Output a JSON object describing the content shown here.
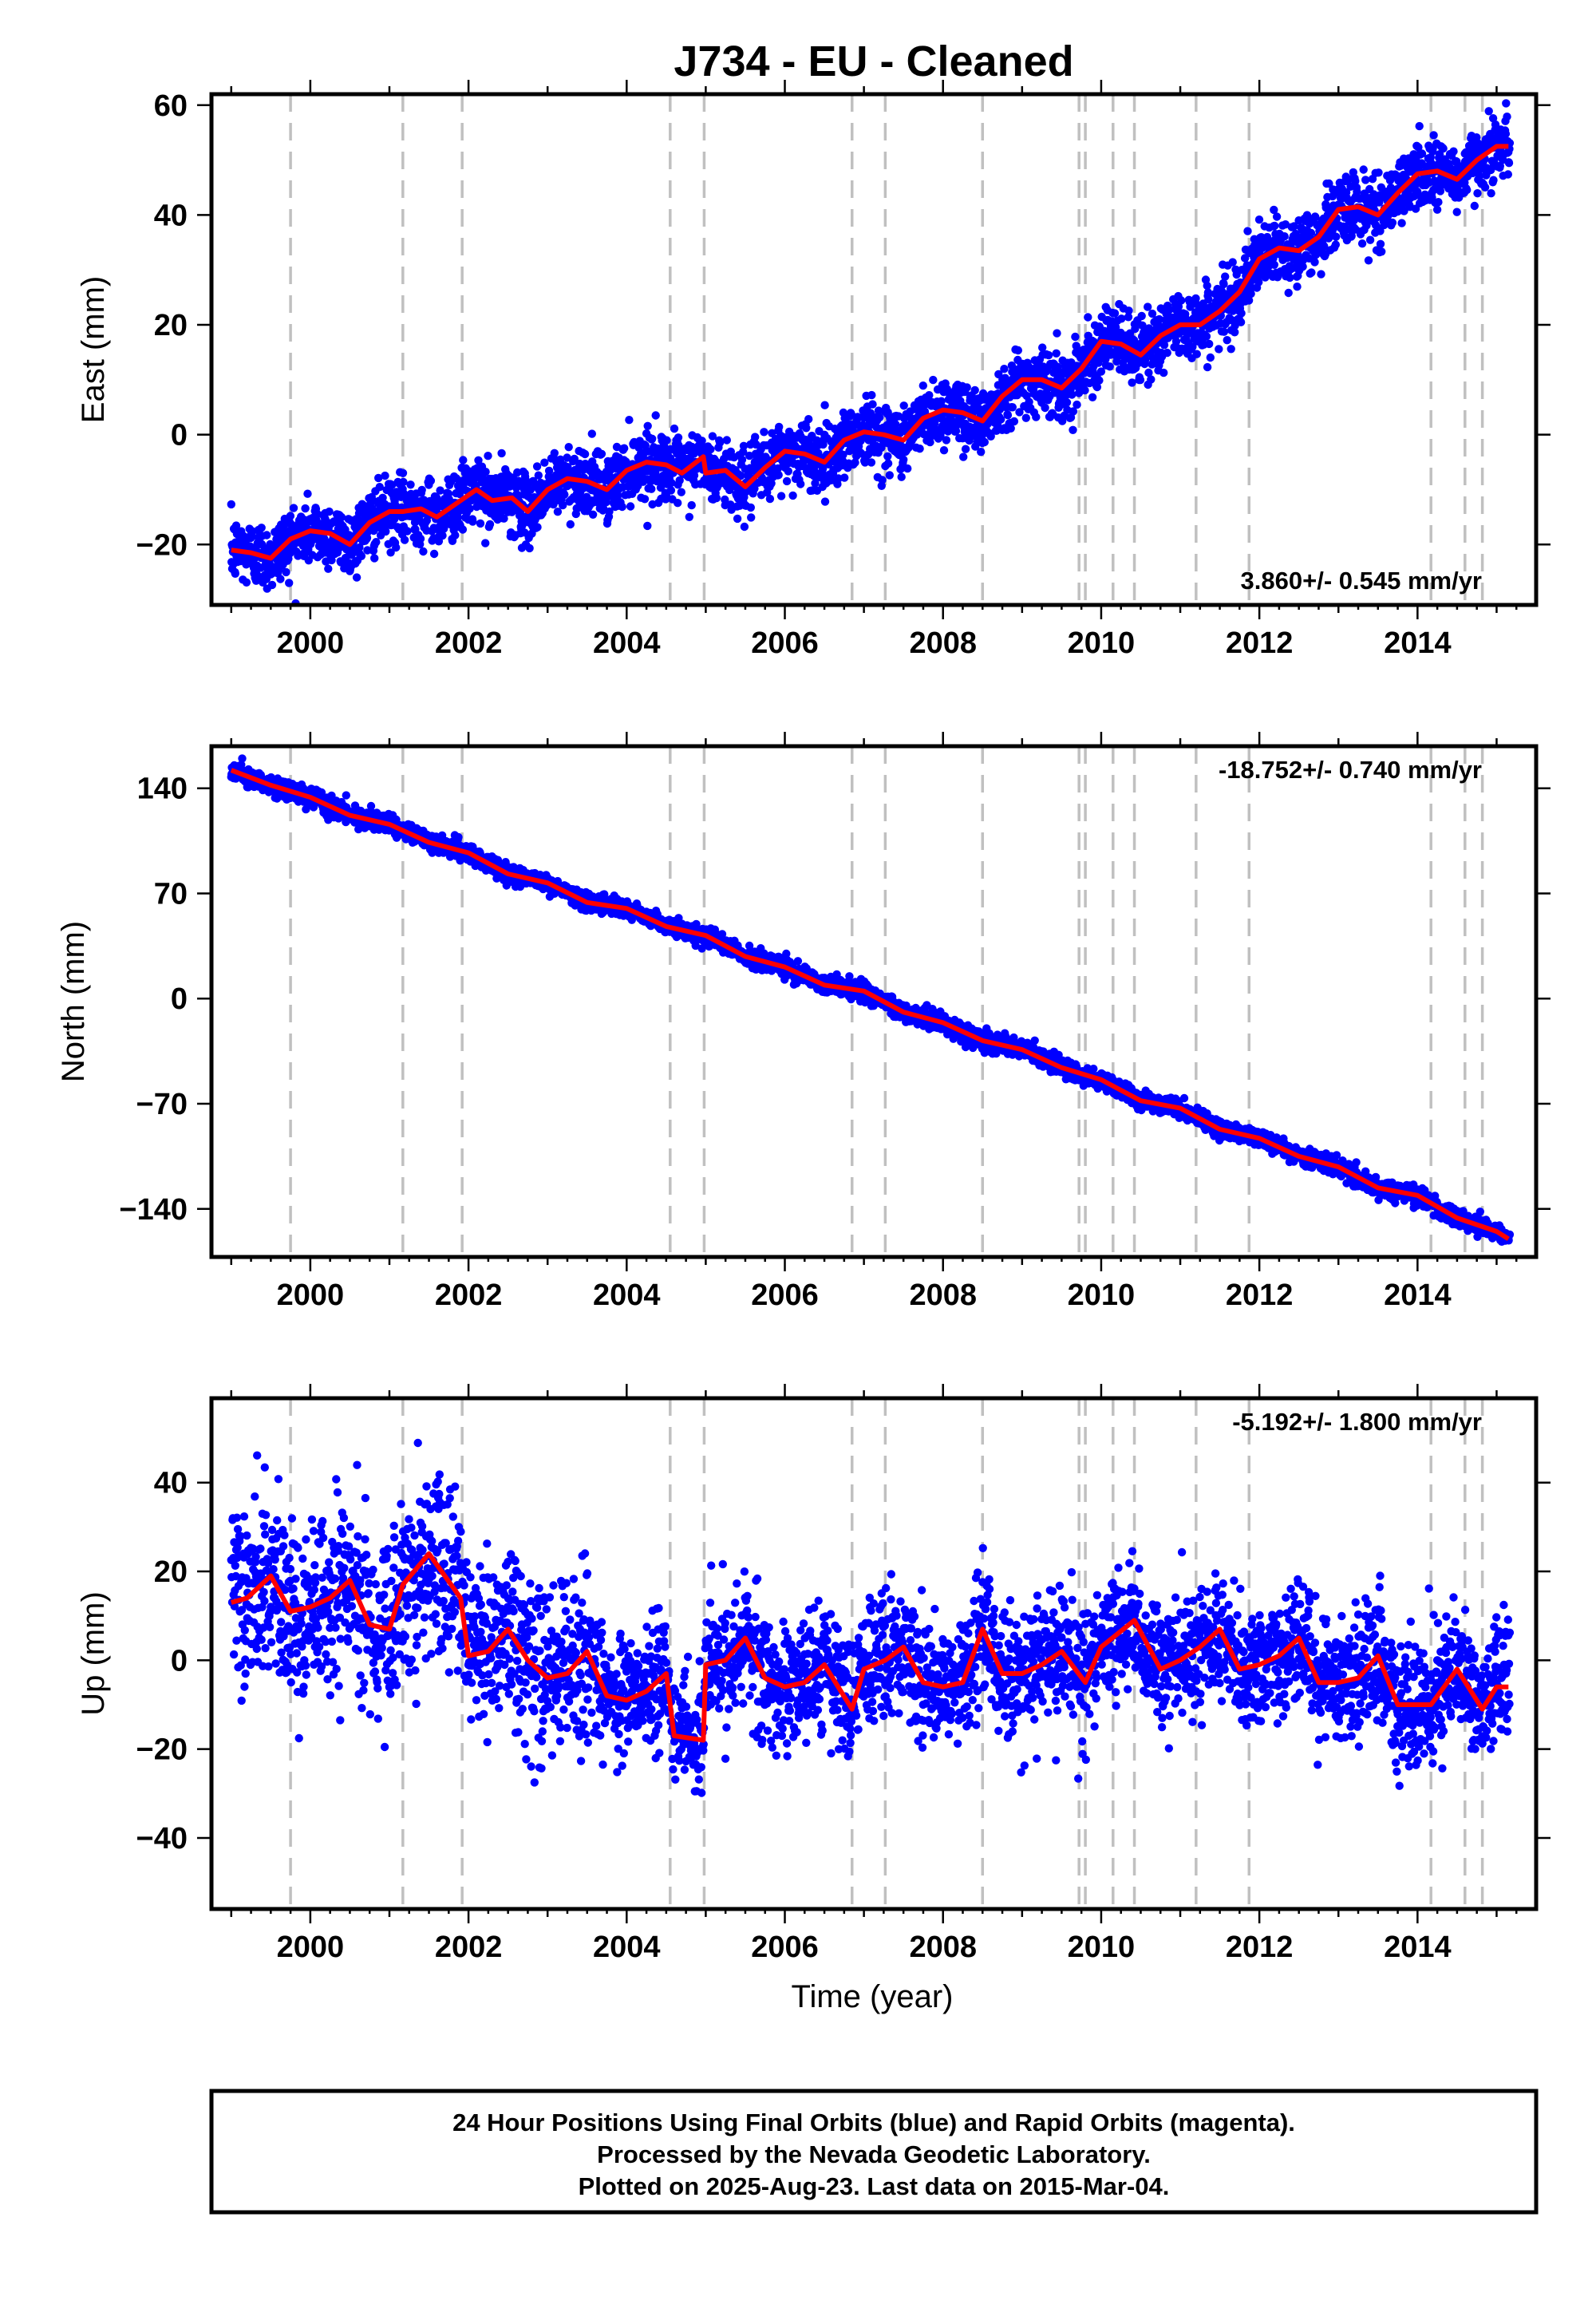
{
  "title": "J734  - EU - Cleaned",
  "colors": {
    "final_orbits": "#0000ff",
    "model_fit": "#ff0000",
    "offset_lines": "#c0c0c0",
    "frame": "#000000"
  },
  "footer": {
    "line1": "24 Hour Positions Using Final Orbits (blue) and Rapid Orbits (magenta).",
    "line2": "Processed by the Nevada Geodetic Laboratory.",
    "line3": "Plotted on 2025-Aug-23. Last data on 2015-Mar-04."
  },
  "chart_data": [
    {
      "type": "scatter",
      "panel": "east",
      "title": "J734  - EU - Cleaned",
      "xlabel": "",
      "ylabel": "East (mm)",
      "xlim": [
        1998.75,
        2015.5
      ],
      "ylim": [
        -31,
        62
      ],
      "x_ticks": [
        2000,
        2002,
        2004,
        2006,
        2008,
        2010,
        2012,
        2014
      ],
      "x_tick_labels": [
        "2000",
        "2002",
        "2004",
        "2006",
        "2008",
        "2010",
        "2012",
        "2014"
      ],
      "y_ticks": [
        -20,
        0,
        20,
        40,
        60
      ],
      "y_tick_labels": [
        "−20",
        "0",
        "20",
        "40",
        "60"
      ],
      "grid": false,
      "rate_text": "3.860+/- 0.545 mm/yr",
      "rate_position": "bottom-right",
      "offset_epochs": [
        1999.75,
        2001.17,
        2001.92,
        2004.55,
        2004.98,
        2006.85,
        2007.27,
        2008.5,
        2009.72,
        2009.8,
        2010.15,
        2010.42,
        2011.2,
        2011.87,
        2014.17,
        2014.6,
        2014.82
      ],
      "fit_series": {
        "name": "",
        "x": [
          1999.0,
          1999.25,
          1999.5,
          1999.75,
          2000.0,
          2000.25,
          2000.5,
          2000.75,
          2001.0,
          2001.17,
          2001.4,
          2001.6,
          2001.9,
          2002.1,
          2002.3,
          2002.55,
          2002.75,
          2003.0,
          2003.25,
          2003.5,
          2003.75,
          2004.0,
          2004.25,
          2004.5,
          2004.7,
          2004.97,
          2005.0,
          2005.25,
          2005.5,
          2005.75,
          2006.0,
          2006.25,
          2006.5,
          2006.75,
          2007.0,
          2007.25,
          2007.5,
          2007.75,
          2008.0,
          2008.25,
          2008.5,
          2008.75,
          2009.0,
          2009.25,
          2009.5,
          2009.75,
          2010.0,
          2010.25,
          2010.5,
          2010.75,
          2011.0,
          2011.25,
          2011.5,
          2011.75,
          2012.0,
          2012.25,
          2012.5,
          2012.75,
          2013.0,
          2013.25,
          2013.5,
          2013.75,
          2014.0,
          2014.25,
          2014.5,
          2014.75,
          2015.0,
          2015.15
        ],
        "y": [
          -21,
          -21.5,
          -22.5,
          -19,
          -17.5,
          -18,
          -20,
          -16,
          -14,
          -14,
          -13.5,
          -15,
          -12,
          -10,
          -12,
          -11.5,
          -14,
          -10,
          -8,
          -8.5,
          -10,
          -6.5,
          -5,
          -5.5,
          -7,
          -4,
          -7,
          -6.5,
          -9.5,
          -6,
          -3,
          -3.5,
          -5,
          -1,
          0.5,
          0,
          -1,
          3,
          4.5,
          4,
          2.5,
          7,
          10,
          10,
          8.5,
          12,
          17,
          16.5,
          14.5,
          18,
          20,
          20,
          22.5,
          26,
          32,
          34,
          33.5,
          36,
          41,
          41.5,
          40,
          44,
          47.5,
          48,
          46.5,
          50,
          52.5,
          52.5
        ]
      }
    },
    {
      "type": "scatter",
      "panel": "north",
      "xlabel": "",
      "ylabel": "North (mm)",
      "xlim": [
        1998.75,
        2015.5
      ],
      "ylim": [
        -172,
        168
      ],
      "x_ticks": [
        2000,
        2002,
        2004,
        2006,
        2008,
        2010,
        2012,
        2014
      ],
      "x_tick_labels": [
        "2000",
        "2002",
        "2004",
        "2006",
        "2008",
        "2010",
        "2012",
        "2014"
      ],
      "y_ticks": [
        -140,
        -70,
        0,
        70,
        140
      ],
      "y_tick_labels": [
        "−140",
        "−70",
        "0",
        "70",
        "140"
      ],
      "grid": false,
      "rate_text": "-18.752+/- 0.740 mm/yr",
      "rate_position": "top-right",
      "offset_epochs": [
        1999.75,
        2001.17,
        2001.92,
        2004.55,
        2004.98,
        2006.85,
        2007.27,
        2008.5,
        2009.72,
        2009.8,
        2010.15,
        2010.42,
        2011.2,
        2011.87,
        2014.17,
        2014.6,
        2014.82
      ],
      "fit_series": {
        "name": "",
        "x": [
          1999.0,
          1999.5,
          2000.0,
          2000.5,
          2001.0,
          2001.5,
          2002.0,
          2002.5,
          2003.0,
          2003.5,
          2004.0,
          2004.5,
          2005.0,
          2005.5,
          2006.0,
          2006.5,
          2007.0,
          2007.5,
          2008.0,
          2008.5,
          2009.0,
          2009.5,
          2010.0,
          2010.5,
          2011.0,
          2011.5,
          2012.0,
          2012.5,
          2013.0,
          2013.5,
          2014.0,
          2014.5,
          2015.0,
          2015.15
        ],
        "y": [
          152,
          142,
          134,
          122,
          116,
          104,
          97,
          83,
          77,
          64,
          60,
          48,
          42,
          28,
          21,
          9,
          5,
          -9,
          -16,
          -28,
          -34,
          -46,
          -54,
          -68,
          -73,
          -87,
          -93,
          -105,
          -112,
          -126,
          -131,
          -146,
          -155,
          -160
        ]
      }
    },
    {
      "type": "scatter",
      "panel": "up",
      "xlabel": "Time (year)",
      "ylabel": "Up (mm)",
      "xlim": [
        1998.75,
        2015.5
      ],
      "ylim": [
        -56,
        59
      ],
      "x_ticks": [
        2000,
        2002,
        2004,
        2006,
        2008,
        2010,
        2012,
        2014
      ],
      "x_tick_labels": [
        "2000",
        "2002",
        "2004",
        "2006",
        "2008",
        "2010",
        "2012",
        "2014"
      ],
      "y_ticks": [
        -40,
        -20,
        0,
        20,
        40
      ],
      "y_tick_labels": [
        "−40",
        "−20",
        "0",
        "20",
        "40"
      ],
      "grid": false,
      "rate_text": "-5.192+/- 1.800 mm/yr",
      "rate_position": "top-right",
      "offset_epochs": [
        1999.75,
        2001.17,
        2001.92,
        2004.55,
        2004.98,
        2006.85,
        2007.27,
        2008.5,
        2009.72,
        2009.8,
        2010.15,
        2010.42,
        2011.2,
        2011.87,
        2014.17,
        2014.6,
        2014.82
      ],
      "fit_series": {
        "name": "",
        "x": [
          1999.0,
          1999.2,
          1999.5,
          1999.75,
          2000.0,
          2000.25,
          2000.5,
          2000.75,
          2001.0,
          2001.17,
          2001.5,
          2001.9,
          2002.0,
          2002.25,
          2002.5,
          2002.75,
          2003.0,
          2003.25,
          2003.5,
          2003.75,
          2004.0,
          2004.25,
          2004.5,
          2004.6,
          2004.97,
          2005.0,
          2005.25,
          2005.5,
          2005.75,
          2006.0,
          2006.25,
          2006.5,
          2006.85,
          2007.0,
          2007.27,
          2007.5,
          2007.75,
          2008.0,
          2008.25,
          2008.5,
          2008.75,
          2009.0,
          2009.25,
          2009.5,
          2009.8,
          2010.0,
          2010.42,
          2010.75,
          2011.0,
          2011.25,
          2011.5,
          2011.75,
          2012.0,
          2012.25,
          2012.5,
          2012.75,
          2013.0,
          2013.25,
          2013.5,
          2013.75,
          2014.0,
          2014.17,
          2014.5,
          2014.82,
          2015.0,
          2015.15
        ],
        "y": [
          13,
          14,
          19,
          11,
          12,
          14,
          18,
          8,
          7,
          17,
          24,
          14,
          1,
          2,
          7,
          0,
          -4,
          -3,
          2,
          -8,
          -9,
          -7,
          -3,
          -17,
          -18,
          -1,
          0,
          5,
          -4,
          -6,
          -5,
          -1,
          -11,
          -2,
          0,
          3,
          -5,
          -6,
          -5,
          7,
          -3,
          -3,
          -1,
          2,
          -5,
          3,
          9,
          -2,
          0,
          3,
          7,
          -2,
          -1,
          1,
          5,
          -5,
          -5,
          -4,
          1,
          -10,
          -10,
          -10,
          -2,
          -11,
          -6,
          -6
        ]
      },
      "scatter_spread_mm": {
        "east": 3,
        "north": 3,
        "up": 7
      }
    }
  ]
}
